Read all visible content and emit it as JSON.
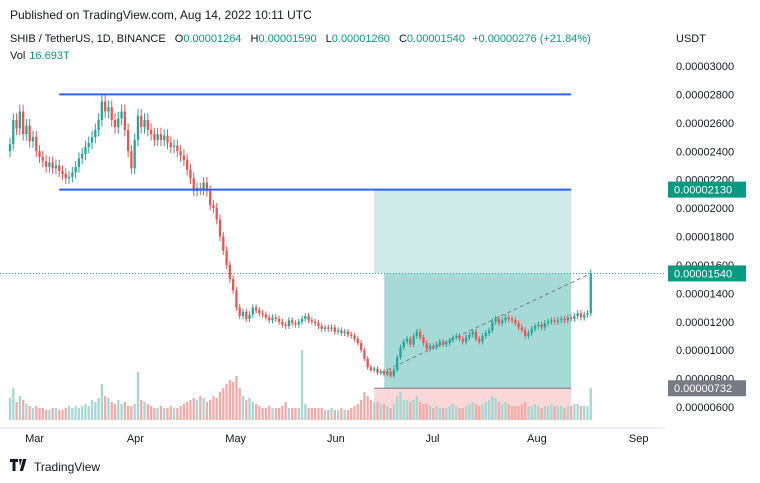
{
  "header": {
    "published": "Published on TradingView.com, Aug 14, 2022 10:11 UTC"
  },
  "legend": {
    "symbol": "SHIB / TetherUS, 1D, BINANCE",
    "open_label": "O",
    "open": "0.00001264",
    "high_label": "H",
    "high": "0.00001590",
    "low_label": "L",
    "low": "0.00001260",
    "close_label": "C",
    "close": "0.00001540",
    "change": "+0.00000276 (+21.84%)",
    "volume_label": "Vol",
    "volume": "16.693T"
  },
  "currency_label": "USDT",
  "footer": {
    "brand": "TradingView",
    "logo": "tradingview-logo-icon"
  },
  "colors": {
    "up": "#26a69a",
    "down": "#ef5350",
    "level_line": "#2962ff",
    "profit_zone": "#b2dfdb",
    "loss_zone": "#f8c8c8"
  },
  "chart_data": {
    "type": "candlestick",
    "symbol": "SHIB/USDT",
    "ylim": [
      5.5e-06,
      3.1e-06
    ],
    "yticks": [
      "0.00003000",
      "0.00002800",
      "0.00002600",
      "0.00002400",
      "0.00002200",
      "0.00002000",
      "0.00001800",
      "0.00001600",
      "0.00001400",
      "0.00001200",
      "0.00001000",
      "0.00000800",
      "0.00000600"
    ],
    "ytick_values": [
      3e-05,
      2.8e-05,
      2.6e-05,
      2.4e-05,
      2.2e-05,
      2e-05,
      1.8e-05,
      1.6e-05,
      1.4e-05,
      1.2e-05,
      1e-05,
      8e-06,
      6e-06
    ],
    "x_start": "2022-02-25",
    "x_end": "2022-09-05",
    "xticks": [
      {
        "label": "Mar",
        "date": "2022-03-01"
      },
      {
        "label": "Apr",
        "date": "2022-04-01"
      },
      {
        "label": "May",
        "date": "2022-05-01"
      },
      {
        "label": "Jun",
        "date": "2022-06-01"
      },
      {
        "label": "Jul",
        "date": "2022-07-01"
      },
      {
        "label": "Aug",
        "date": "2022-08-01"
      },
      {
        "label": "Sep",
        "date": "2022-09-01"
      }
    ],
    "series_start": "2022-02-25",
    "closes": [
      2.45e-05,
      2.62e-05,
      2.56e-05,
      2.68e-05,
      2.52e-05,
      2.58e-05,
      2.47e-05,
      2.5e-05,
      2.4e-05,
      2.36e-05,
      2.33e-05,
      2.29e-05,
      2.32e-05,
      2.28e-05,
      2.3e-05,
      2.26e-05,
      2.24e-05,
      2.21e-05,
      2.22e-05,
      2.25e-05,
      2.29e-05,
      2.35e-05,
      2.38e-05,
      2.43e-05,
      2.46e-05,
      2.5e-05,
      2.55e-05,
      2.62e-05,
      2.75e-05,
      2.68e-05,
      2.71e-05,
      2.62e-05,
      2.57e-05,
      2.63e-05,
      2.68e-05,
      2.55e-05,
      2.4e-05,
      2.28e-05,
      2.48e-05,
      2.65e-05,
      2.57e-05,
      2.62e-05,
      2.55e-05,
      2.52e-05,
      2.48e-05,
      2.52e-05,
      2.48e-05,
      2.51e-05,
      2.46e-05,
      2.43e-05,
      2.44e-05,
      2.4e-05,
      2.37e-05,
      2.34e-05,
      2.27e-05,
      2.21e-05,
      2.12e-05,
      2.14e-05,
      2.13e-05,
      2.18e-05,
      2.12e-05,
      2.02e-05,
      2e-05,
      1.92e-05,
      1.8e-05,
      1.7e-05,
      1.6e-05,
      1.5e-05,
      1.42e-05,
      1.3e-05,
      1.24e-05,
      1.27e-05,
      1.22e-05,
      1.25e-05,
      1.3e-05,
      1.28e-05,
      1.26e-05,
      1.25e-05,
      1.23e-05,
      1.21e-05,
      1.23e-05,
      1.22e-05,
      1.2e-05,
      1.18e-05,
      1.17e-05,
      1.21e-05,
      1.19e-05,
      1.18e-05,
      1.2e-05,
      1.22e-05,
      1.24e-05,
      1.21e-05,
      1.2e-05,
      1.19e-05,
      1.17e-05,
      1.15e-05,
      1.16e-05,
      1.15e-05,
      1.16e-05,
      1.13e-05,
      1.14e-05,
      1.12e-05,
      1.13e-05,
      1.11e-05,
      1.1e-05,
      1.08e-05,
      1.05e-05,
      1e-05,
      9.4e-06,
      8.8e-06,
      8.6e-06,
      8.7e-06,
      8.4e-06,
      8.5e-06,
      8.3e-06,
      8.5e-06,
      8.2e-06,
      8.6e-06,
      9.5e-06,
      1.02e-05,
      1.06e-05,
      1.08e-05,
      1.04e-05,
      1.1e-05,
      1.13e-05,
      1.09e-05,
      1.05e-05,
      1.01e-05,
      1.03e-05,
      1.02e-05,
      1.04e-05,
      1.06e-05,
      1.04e-05,
      1.05e-05,
      1.07e-05,
      1.09e-05,
      1.1e-05,
      1.08e-05,
      1.06e-05,
      1.09e-05,
      1.11e-05,
      1.13e-05,
      1.08e-05,
      1.06e-05,
      1.1e-05,
      1.12e-05,
      1.14e-05,
      1.2e-05,
      1.22e-05,
      1.19e-05,
      1.21e-05,
      1.23e-05,
      1.22e-05,
      1.21e-05,
      1.19e-05,
      1.16e-05,
      1.14e-05,
      1.1e-05,
      1.12e-05,
      1.15e-05,
      1.17e-05,
      1.18e-05,
      1.16e-05,
      1.19e-05,
      1.2e-05,
      1.21e-05,
      1.2e-05,
      1.21e-05,
      1.22e-05,
      1.21e-05,
      1.23e-05,
      1.22e-05,
      1.24e-05,
      1.26e-05,
      1.23e-05,
      1.25e-05,
      1.26e-05,
      1.54e-05
    ],
    "volumes": [
      0.55,
      0.8,
      0.45,
      0.6,
      0.5,
      0.4,
      0.35,
      0.3,
      0.35,
      0.3,
      0.3,
      0.25,
      0.25,
      0.3,
      0.3,
      0.25,
      0.25,
      0.3,
      0.35,
      0.3,
      0.35,
      0.3,
      0.35,
      0.4,
      0.35,
      0.5,
      0.45,
      0.55,
      0.9,
      0.6,
      0.55,
      0.45,
      0.4,
      0.5,
      0.4,
      0.45,
      0.35,
      0.35,
      0.4,
      1.2,
      0.5,
      0.45,
      0.4,
      0.35,
      0.3,
      0.3,
      0.35,
      0.3,
      0.3,
      0.35,
      0.3,
      0.3,
      0.35,
      0.4,
      0.45,
      0.5,
      0.55,
      0.5,
      0.6,
      0.55,
      0.45,
      0.5,
      0.6,
      0.55,
      0.7,
      0.8,
      0.9,
      1.0,
      0.95,
      1.1,
      0.8,
      0.6,
      0.5,
      0.55,
      0.45,
      0.4,
      0.35,
      0.3,
      0.3,
      0.35,
      0.3,
      0.3,
      0.3,
      0.35,
      0.45,
      0.3,
      0.3,
      0.3,
      0.3,
      1.75,
      0.4,
      0.3,
      0.3,
      0.3,
      0.3,
      0.3,
      0.25,
      0.25,
      0.3,
      0.25,
      0.25,
      0.3,
      0.25,
      0.25,
      0.3,
      0.35,
      0.4,
      0.5,
      0.7,
      0.6,
      0.5,
      0.45,
      0.45,
      0.4,
      0.4,
      0.35,
      0.3,
      0.4,
      0.6,
      0.7,
      0.5,
      0.5,
      0.45,
      0.5,
      0.6,
      0.45,
      0.4,
      0.4,
      0.35,
      0.3,
      0.35,
      0.3,
      0.3,
      0.3,
      0.35,
      0.4,
      0.35,
      0.3,
      0.3,
      0.35,
      0.4,
      0.45,
      0.4,
      0.35,
      0.4,
      0.45,
      0.5,
      0.6,
      0.55,
      0.45,
      0.4,
      0.45,
      0.4,
      0.35,
      0.35,
      0.35,
      0.4,
      0.45,
      0.35,
      0.35,
      0.4,
      0.35,
      0.3,
      0.35,
      0.35,
      0.4,
      0.35,
      0.35,
      0.35,
      0.3,
      0.35,
      0.35,
      0.4,
      0.4,
      0.35,
      0.35,
      0.35,
      0.8
    ],
    "horizontal_lines": [
      {
        "value": 2.8e-05,
        "from": "2022-03-12",
        "to": "2022-08-15",
        "label": ""
      },
      {
        "value": 2.13e-05,
        "from": "2022-03-12",
        "to": "2022-08-15",
        "label": "0.00002130"
      }
    ],
    "position_tool": {
      "entry": 1.54e-05,
      "target": 2.13e-05,
      "stop": 7.32e-06,
      "from": "2022-06-16",
      "to": "2022-08-15"
    },
    "last_price_label": "0.00001540",
    "stop_label": "0.00000732"
  }
}
